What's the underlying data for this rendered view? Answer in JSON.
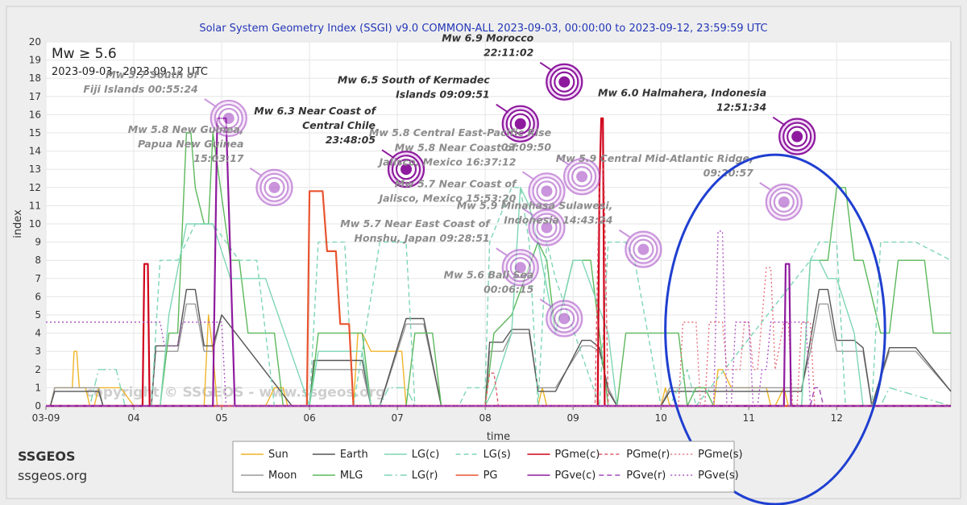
{
  "chart_data": {
    "type": "line",
    "title": "Solar System Geometry Index (SSGI) v9.0 COMMON-ALL 2023-09-03, 00:00:00 to 2023-09-12, 23:59:59 UTC",
    "xlabel": "time",
    "ylabel": "index",
    "xlim": [
      0,
      10.3
    ],
    "ylim": [
      0,
      20
    ],
    "yticks": [
      "0",
      "1",
      "2",
      "3",
      "4",
      "5",
      "6",
      "7",
      "8",
      "9",
      "10",
      "11",
      "12",
      "13",
      "14",
      "15",
      "16",
      "17",
      "18",
      "19",
      "20"
    ],
    "xticks": [
      {
        "v": 0,
        "label": "03-09"
      },
      {
        "v": 1,
        "label": "04"
      },
      {
        "v": 2,
        "label": "05"
      },
      {
        "v": 3,
        "label": "06"
      },
      {
        "v": 4,
        "label": "07"
      },
      {
        "v": 5,
        "label": "08"
      },
      {
        "v": 6,
        "label": "09"
      },
      {
        "v": 7,
        "label": "10"
      },
      {
        "v": 8,
        "label": "11"
      },
      {
        "v": 9,
        "label": "12"
      }
    ],
    "grid": true,
    "inset_title": "Mw ≥ 5.6",
    "inset_subtitle": "2023-09-03 - 2023-09-12 UTC",
    "watermark": "copyright © SSGEOS - www.ssgeos.org",
    "series": [
      {
        "name": "Sun",
        "color": "#f0b429",
        "dash": "",
        "x": [
          0,
          0.05,
          0.1,
          0.3,
          0.32,
          0.35,
          0.38,
          0.45,
          0.5,
          0.55,
          0.6,
          0.85,
          1.0,
          1.05,
          1.8,
          1.85,
          1.9,
          1.95,
          2.5,
          2.6,
          2.7,
          2.75,
          3.5,
          3.55,
          3.6,
          3.7,
          3.75,
          4.0,
          4.05,
          4.1,
          5.6,
          5.65,
          5.7,
          7.0,
          7.05,
          7.1,
          7.6,
          7.65,
          7.7,
          7.8,
          7.9,
          8.2,
          8.25,
          8.3,
          8.4,
          8.45,
          9.5
        ],
        "values": [
          0,
          0,
          1,
          1,
          3,
          3,
          1,
          1,
          0,
          0,
          1,
          1,
          0,
          0,
          0,
          5,
          3,
          0,
          0,
          1,
          1,
          0,
          0,
          4,
          4,
          3,
          3,
          3,
          3,
          0,
          0,
          1,
          0,
          0,
          1,
          0,
          0,
          2,
          2,
          1,
          1,
          1,
          0,
          0,
          1,
          0,
          0
        ]
      },
      {
        "name": "Moon",
        "color": "#9a9a9a",
        "dash": "",
        "x": [
          0,
          0.05,
          0.1,
          0.6,
          0.65,
          1.0,
          1.2,
          1.25,
          1.3,
          1.5,
          1.6,
          1.7,
          1.8,
          1.9,
          2.0,
          2.8,
          3.0,
          3.05,
          3.1,
          3.6,
          3.7,
          3.8,
          4.1,
          4.2,
          4.3,
          4.5,
          5.0,
          5.05,
          5.2,
          5.3,
          5.5,
          5.6,
          5.8,
          6.1,
          6.2,
          6.3,
          6.4,
          6.5,
          7.0,
          7.1,
          7.3,
          7.6,
          8.6,
          8.7,
          8.8,
          8.9,
          9.0,
          9.2,
          9.3,
          9.4,
          9.6,
          9.9,
          10.3
        ],
        "values": [
          0,
          0,
          1,
          1,
          0,
          0,
          0,
          3,
          3,
          3,
          5.6,
          5.6,
          3,
          3,
          5,
          0,
          0,
          2,
          2,
          2,
          0,
          0,
          4.5,
          4.5,
          4.5,
          0,
          0,
          3,
          3,
          4,
          4,
          1,
          1,
          3.3,
          3.3,
          3,
          1,
          0,
          0,
          1,
          1,
          1,
          1,
          3,
          5.6,
          5.6,
          3,
          3,
          3,
          0,
          3,
          3,
          0.8
        ]
      },
      {
        "name": "Earth",
        "color": "#555555",
        "dash": "",
        "x": [
          0,
          0.05,
          0.1,
          0.6,
          0.65,
          1.0,
          1.2,
          1.25,
          1.3,
          1.5,
          1.6,
          1.7,
          1.8,
          1.9,
          2.0,
          2.8,
          3.0,
          3.05,
          3.1,
          3.6,
          3.7,
          3.8,
          4.1,
          4.2,
          4.3,
          4.5,
          5.0,
          5.05,
          5.2,
          5.3,
          5.5,
          5.6,
          5.8,
          6.1,
          6.2,
          6.3,
          6.4,
          6.5,
          7.0,
          7.1,
          7.3,
          7.6,
          8.6,
          8.7,
          8.8,
          8.9,
          9.0,
          9.2,
          9.3,
          9.4,
          9.6,
          9.9,
          10.3
        ],
        "values": [
          0,
          0,
          0.8,
          0.8,
          0,
          0,
          0,
          3.3,
          3.3,
          3.3,
          6.4,
          6.4,
          3.3,
          3.3,
          5,
          0,
          0,
          2.5,
          2.5,
          2.5,
          0,
          0,
          4.8,
          4.8,
          4.8,
          0,
          0,
          3.5,
          3.5,
          4.2,
          4.2,
          0.8,
          0.8,
          3.6,
          3.6,
          3.2,
          0.8,
          0,
          0,
          0.8,
          0.8,
          0.8,
          0.8,
          3.6,
          6.4,
          6.4,
          3.6,
          3.6,
          3.2,
          0,
          3.2,
          3.2,
          0.8
        ]
      },
      {
        "name": "MLG",
        "color": "#5cb85c",
        "dash": "",
        "x": [
          0,
          1.3,
          1.4,
          1.5,
          1.6,
          1.65,
          1.7,
          1.8,
          1.85,
          1.9,
          2.1,
          2.2,
          2.3,
          2.4,
          2.5,
          2.6,
          2.7,
          2.8,
          3.0,
          3.1,
          3.6,
          3.7,
          4.1,
          4.2,
          4.3,
          4.4,
          4.5,
          5.0,
          5.1,
          5.3,
          5.6,
          5.7,
          5.8,
          6.0,
          6.1,
          6.2,
          6.3,
          6.4,
          6.5,
          6.55,
          6.6,
          7.0,
          7.1,
          7.2,
          7.3,
          7.4,
          7.5,
          7.6,
          7.8,
          8.6,
          8.7,
          8.8,
          8.9,
          9.0,
          9.1,
          9.2,
          9.3,
          9.5,
          9.6,
          9.7,
          9.8,
          9.9,
          10.0,
          10.1,
          10.3
        ],
        "values": [
          0,
          0,
          4,
          4,
          15,
          15,
          12,
          10,
          10,
          15,
          8,
          8,
          4,
          4,
          4,
          4,
          0,
          0,
          0,
          4,
          4,
          0,
          0,
          4,
          4,
          4,
          0,
          0,
          4,
          5,
          9,
          8,
          4,
          8,
          8,
          8,
          4,
          0,
          0,
          2,
          4,
          4,
          4,
          4,
          0,
          1,
          1,
          0,
          0,
          0,
          8,
          8,
          8,
          12,
          12,
          8,
          8,
          4,
          4,
          8,
          8,
          8,
          8,
          4,
          4
        ]
      },
      {
        "name": "LG(c)",
        "color": "#7fd6b4",
        "dash": "",
        "x": [
          0,
          1.3,
          1.4,
          1.6,
          1.7,
          1.8,
          1.9,
          2.1,
          2.2,
          2.3,
          2.5,
          3.0,
          3.1,
          3.6,
          3.7,
          4.1,
          5.0,
          5.1,
          5.3,
          5.4,
          5.5,
          5.6,
          5.8,
          6.0,
          6.1,
          6.4,
          6.5,
          7.0,
          7.1,
          7.3,
          7.6,
          8.6,
          8.7,
          8.8,
          8.9,
          9.0,
          9.2,
          9.3
        ],
        "values": [
          0,
          0,
          5,
          10,
          10,
          10,
          10,
          7,
          7,
          7,
          7,
          0,
          3,
          3,
          0,
          0,
          0,
          1,
          4,
          12,
          11,
          9,
          4,
          8,
          8,
          4,
          0,
          0,
          0,
          0,
          0,
          0,
          8,
          8,
          7,
          7,
          4,
          0
        ]
      },
      {
        "name": "LG(s)",
        "color": "#7fd6b4",
        "dash": "6,4",
        "x": [
          0,
          1.2,
          1.3,
          1.5,
          1.7,
          1.9,
          2.2,
          2.4,
          2.6,
          2.8,
          3.0,
          3.1,
          3.4,
          3.5,
          3.8,
          4.1,
          4.2,
          4.7,
          4.8,
          5.0,
          5.05,
          5.3,
          5.4,
          5.5,
          5.6,
          5.7,
          5.8,
          6.3,
          6.4,
          6.6,
          6.7,
          7.0,
          7.1,
          7.3,
          7.4,
          8.7,
          8.8,
          9.0,
          9.1,
          9.4,
          9.5,
          9.9,
          10.3
        ],
        "values": [
          0,
          0,
          8,
          8,
          10,
          10,
          8,
          8,
          0,
          0,
          0,
          9,
          9,
          0,
          9,
          9,
          0,
          0,
          1,
          1,
          9,
          12,
          12,
          9,
          0,
          9,
          7,
          0,
          9,
          9,
          8,
          0,
          0,
          2,
          0,
          8,
          9,
          9,
          0,
          0,
          9,
          9,
          8
        ]
      },
      {
        "name": "LG(r)",
        "color": "#7fd6b4",
        "dash": "10,4,2,4",
        "x": [
          0,
          0.5,
          0.6,
          0.8,
          0.9,
          1.0,
          3.8,
          3.9,
          4.1,
          4.2,
          9.5,
          9.6,
          10.3
        ],
        "values": [
          0,
          0,
          2,
          2,
          0,
          0,
          0,
          1,
          1,
          0,
          0,
          1,
          0
        ]
      },
      {
        "name": "PGme(c)",
        "color": "#d0021b",
        "dash": "",
        "x": [
          0,
          1.1,
          1.12,
          1.16,
          1.18,
          1.2,
          6.28,
          6.3,
          6.32,
          6.34,
          6.36,
          10.3
        ],
        "values": [
          0,
          0,
          7.8,
          7.8,
          0,
          0,
          0,
          12,
          15.8,
          15.8,
          0,
          0
        ]
      },
      {
        "name": "PG",
        "color": "#e8542f",
        "dash": "",
        "x": [
          0,
          2.97,
          3.0,
          3.15,
          3.2,
          3.3,
          3.35,
          3.45,
          3.5,
          10.3
        ],
        "values": [
          0,
          0,
          11.8,
          11.8,
          8.5,
          8.5,
          4.5,
          4.5,
          0,
          0
        ]
      },
      {
        "name": "PGme(r)",
        "color": "#e35d6a",
        "dash": "4,3",
        "x": [
          0,
          5.0,
          5.05,
          5.1,
          5.15,
          6.25,
          6.3,
          6.35,
          6.4,
          10.3
        ],
        "values": [
          0,
          0,
          1.8,
          1.8,
          0,
          0,
          13,
          13,
          0,
          0
        ]
      },
      {
        "name": "PGme(s)",
        "color": "#e8747c",
        "dash": "2,3",
        "x": [
          0,
          7.2,
          7.25,
          7.4,
          7.45,
          7.5,
          7.55,
          7.7,
          7.75,
          7.9,
          7.95,
          8.0,
          8.05,
          8.1,
          8.2,
          8.25,
          8.3,
          8.4,
          8.45,
          8.5,
          8.55,
          8.6,
          8.7,
          8.75,
          8.8,
          9.0,
          10.3
        ],
        "values": [
          0,
          0,
          4.6,
          4.6,
          0,
          0,
          4.6,
          4.6,
          2,
          2,
          4.6,
          4.6,
          2,
          2,
          7.6,
          7.6,
          2,
          4.6,
          4.6,
          0,
          0,
          4.6,
          4.6,
          0,
          0,
          0,
          0
        ]
      },
      {
        "name": "PGve(c)",
        "color": "#8e1a9e",
        "dash": "",
        "x": [
          0,
          1.9,
          1.95,
          2.05,
          2.1,
          2.15,
          8.4,
          8.42,
          8.46,
          8.48,
          10.3
        ],
        "values": [
          0,
          0,
          15.8,
          15.8,
          8,
          0,
          0,
          7.8,
          7.8,
          0,
          0
        ]
      },
      {
        "name": "PGve(r)",
        "color": "#a24ab8",
        "dash": "6,4",
        "x": [
          0,
          8.7,
          8.75,
          8.8,
          8.85,
          10.3
        ],
        "values": [
          0,
          0,
          1,
          1,
          0,
          0
        ]
      },
      {
        "name": "PGve(s)",
        "color": "#b05ac6",
        "dash": "2,3",
        "x": [
          0,
          0.0,
          1.3,
          1.35,
          1.5,
          1.55,
          2.0,
          2.05,
          7.6,
          7.65,
          7.7,
          7.75,
          7.8,
          7.85,
          8.0,
          8.05,
          8.1,
          8.15,
          8.2,
          8.25,
          8.3,
          8.6,
          8.65,
          8.7,
          9.0
        ],
        "values": [
          4.6,
          4.6,
          4.6,
          3.3,
          3.3,
          4.6,
          4.6,
          0,
          0,
          9.6,
          9.6,
          0,
          0,
          4.6,
          4.6,
          0,
          0,
          2,
          2,
          4.6,
          4.6,
          4.6,
          4.6,
          0,
          0
        ]
      }
    ],
    "events": [
      {
        "x": 2.08,
        "y": 15.8,
        "lines": [
          "Mw 5.7 South of",
          "Fiji Islands 00:55:24"
        ],
        "dim": true,
        "color": "#a040c0"
      },
      {
        "x": 2.6,
        "y": 12,
        "lines": [
          "Mw 5.8 New Guinea,",
          "Papua New Guinea",
          "15:03:17"
        ],
        "dim": true,
        "color": "#a040c0"
      },
      {
        "x": 4.1,
        "y": 13,
        "lines": [
          "Mw 6.3 Near Coast of",
          "Central Chile",
          "23:48:05"
        ],
        "dim": false,
        "color": "#8e1a9e"
      },
      {
        "x": 5.4,
        "y": 15.5,
        "lines": [
          "Mw 6.5 South of Kermadec",
          "Islands 09:09:51"
        ],
        "dim": false,
        "color": "#8e1a9e"
      },
      {
        "x": 5.9,
        "y": 17.8,
        "lines": [
          "Mw 6.9 Morocco",
          "22:11:02"
        ],
        "dim": false,
        "color": "#8e1a9e"
      },
      {
        "x": 5.7,
        "y": 11.8,
        "lines": [
          "Mw 5.8 Near Coast of",
          "Jalisco, Mexico 16:37:12"
        ],
        "dim": true,
        "color": "#a040c0"
      },
      {
        "x": 5.7,
        "y": 9.8,
        "lines": [
          "Mw 5.7 Near Coast of",
          "Jalisco, Mexico 15:53:20"
        ],
        "dim": true,
        "color": "#a040c0"
      },
      {
        "x": 5.4,
        "y": 7.6,
        "lines": [
          "Mw 5.7 Near East Coast of",
          "Honshu, Japan 09:28:51"
        ],
        "dim": true,
        "color": "#a040c0"
      },
      {
        "x": 6.1,
        "y": 12.6,
        "lines": [
          "Mw 5.8 Central East-Pacific Rise",
          "03:09:50"
        ],
        "dim": true,
        "color": "#a040c0"
      },
      {
        "x": 5.9,
        "y": 4.8,
        "lines": [
          "Mw 5.6 Bali Sea",
          "00:06:15"
        ],
        "dim": true,
        "color": "#a040c0"
      },
      {
        "x": 6.8,
        "y": 8.6,
        "lines": [
          "Mw 5.9 Minahasa Sulawesi,",
          "Indonesia 14:43:24"
        ],
        "dim": true,
        "color": "#a040c0"
      },
      {
        "x": 8.55,
        "y": 14.8,
        "lines": [
          "Mw 6.0 Halmahera, Indonesia",
          "12:51:34"
        ],
        "dim": false,
        "color": "#8e1a9e"
      },
      {
        "x": 8.4,
        "y": 11.2,
        "lines": [
          "Mw 5.9 Central Mid-Atlantic Ridge,",
          "09:20:57"
        ],
        "dim": true,
        "color": "#a040c0"
      }
    ],
    "highlight": {
      "cx": 8.3,
      "cy": 4.2,
      "rx": 1.25,
      "ry": 9.6,
      "color": "#1f3fd0"
    },
    "legend_position": "bottom-center",
    "legend_order": [
      [
        "Sun",
        "Moon"
      ],
      [
        "Earth",
        "MLG"
      ],
      [
        "LG(c)",
        "LG(r)"
      ],
      [
        "LG(s)",
        ""
      ],
      [
        "PGme(c)",
        "PG"
      ],
      [
        "PGme(r)",
        "PGve(c)"
      ],
      [
        "PGme(s)",
        "PGve(r)"
      ],
      [
        "",
        "PGve(s)"
      ]
    ],
    "legend_grid": [
      [
        "Sun",
        "Earth",
        "LG(c)",
        "LG(s)",
        "PGme(c)",
        "PGme(r)",
        "PGme(s)"
      ],
      [
        "Moon",
        "MLG",
        "LG(r)",
        "PG",
        "PGve(c)",
        "PGve(r)",
        "PGve(s)"
      ]
    ]
  },
  "brand": {
    "name": "SSGEOS",
    "site": "ssgeos.org"
  }
}
